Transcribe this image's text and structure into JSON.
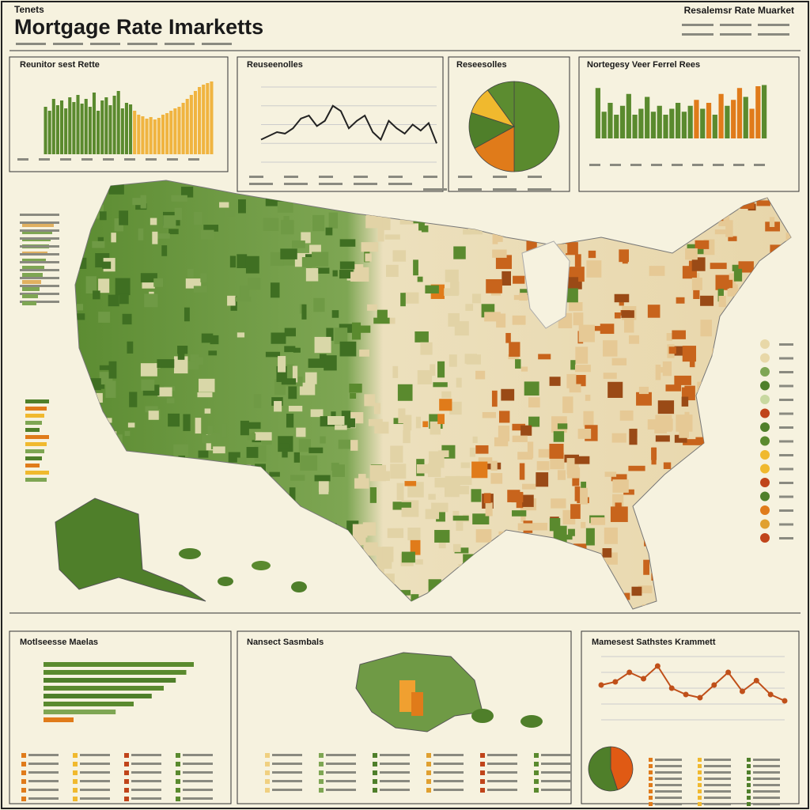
{
  "header": {
    "kicker": "Tenets",
    "title": "Mortgage Rate Imarketts",
    "badge": "Resalemsr Rate Muarket"
  },
  "map_panel": {
    "title": "Nansect Sasmbals"
  },
  "chart_data": [
    {
      "type": "bar",
      "title": "Reunitor sest Rette",
      "ylim": [
        0,
        100
      ],
      "values": [
        60,
        55,
        70,
        62,
        68,
        58,
        72,
        66,
        75,
        64,
        70,
        60,
        78,
        55,
        68,
        72,
        62,
        74,
        80,
        58,
        65,
        63,
        55,
        50,
        48,
        45,
        47,
        44,
        46,
        50,
        52,
        55,
        58,
        60,
        65,
        70,
        75,
        80,
        85,
        88,
        90,
        92
      ],
      "colors": [
        "#5a8a2e",
        "#5a8a2e",
        "#5a8a2e",
        "#5a8a2e",
        "#5a8a2e",
        "#5a8a2e",
        "#5a8a2e",
        "#5a8a2e",
        "#5a8a2e",
        "#5a8a2e",
        "#5a8a2e",
        "#5a8a2e",
        "#5a8a2e",
        "#5a8a2e",
        "#5a8a2e",
        "#5a8a2e",
        "#5a8a2e",
        "#5a8a2e",
        "#5a8a2e",
        "#5a8a2e",
        "#5a8a2e",
        "#5a8a2e",
        "#f0b440",
        "#f0b440",
        "#f0b440",
        "#f0b440",
        "#f0b440",
        "#f0b440",
        "#f0b440",
        "#f0b440",
        "#f0b440",
        "#f0b440",
        "#f0b440",
        "#f0b440",
        "#f0b440",
        "#f0b440",
        "#f0b440",
        "#f0b440",
        "#f0b440",
        "#f0b440",
        "#f0b440",
        "#f0b440"
      ]
    },
    {
      "type": "line",
      "title": "Reuseenolles",
      "ylim": [
        0,
        100
      ],
      "color": "#222222",
      "values": [
        30,
        35,
        40,
        38,
        45,
        58,
        62,
        48,
        55,
        75,
        68,
        45,
        55,
        62,
        40,
        30,
        55,
        45,
        38,
        50,
        42,
        52,
        25
      ]
    },
    {
      "type": "pie",
      "title": "Reseesolles",
      "values": [
        50,
        17,
        13,
        10,
        10
      ],
      "colors": [
        "#5a8a2e",
        "#e07b1a",
        "#4f7f2a",
        "#f0b92e",
        "#5c8c30"
      ]
    },
    {
      "type": "bar",
      "title": "Nortegesy Veer Ferrel Rees",
      "ylim": [
        0,
        100
      ],
      "values": [
        85,
        45,
        60,
        40,
        55,
        75,
        40,
        50,
        70,
        45,
        55,
        40,
        50,
        60,
        45,
        55,
        65,
        50,
        60,
        40,
        75,
        55,
        65,
        85,
        70,
        50,
        88,
        90
      ],
      "colors": [
        "#5a8a2e",
        "#5a8a2e",
        "#5a8a2e",
        "#5a8a2e",
        "#5a8a2e",
        "#5a8a2e",
        "#5a8a2e",
        "#5a8a2e",
        "#5a8a2e",
        "#5a8a2e",
        "#5a8a2e",
        "#5a8a2e",
        "#5a8a2e",
        "#5a8a2e",
        "#5a8a2e",
        "#5a8a2e",
        "#e07b1a",
        "#5a8a2e",
        "#e07b1a",
        "#5a8a2e",
        "#e07b1a",
        "#5a8a2e",
        "#e07b1a",
        "#e07b1a",
        "#5a8a2e",
        "#e07b1a",
        "#e07b1a",
        "#5a8a2e"
      ]
    },
    {
      "type": "hbar",
      "title": "Motlseesse Maelas",
      "xlim": [
        0,
        100
      ],
      "values": [
        100,
        95,
        88,
        80,
        72,
        60,
        48,
        20
      ],
      "colors": [
        "#5a8a2e",
        "#5a8a2e",
        "#4f7f2a",
        "#5a8a2e",
        "#4f7f2a",
        "#5a8a2e",
        "#7ea653",
        "#e07b1a"
      ]
    },
    {
      "type": "line",
      "title": "Mamesest Sathstes Krammett",
      "ylim": [
        0,
        100
      ],
      "color": "#c0501a",
      "markers": true,
      "values": [
        55,
        60,
        75,
        65,
        85,
        50,
        40,
        35,
        55,
        75,
        45,
        62,
        40,
        30
      ]
    },
    {
      "type": "pie",
      "values": [
        45,
        55
      ],
      "colors": [
        "#e05a14",
        "#4f7f2a"
      ]
    }
  ]
}
